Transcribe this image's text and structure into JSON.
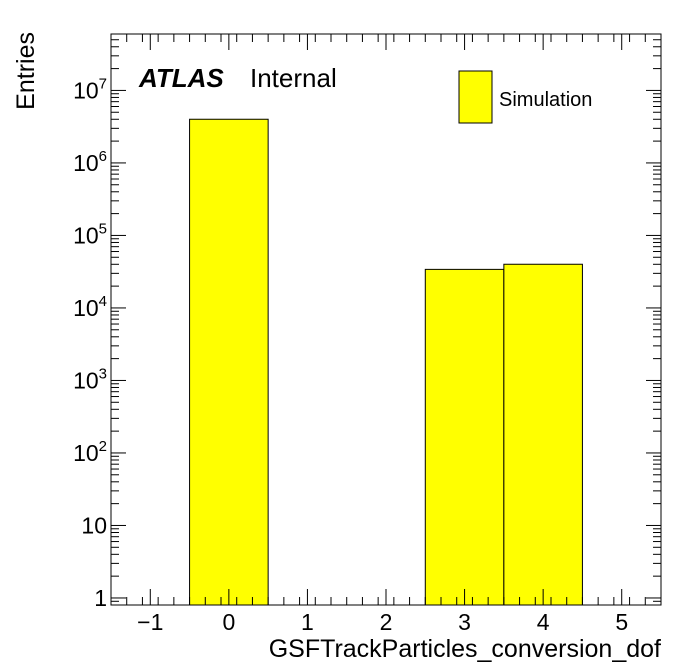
{
  "chart_data": {
    "type": "bar",
    "title": "",
    "xlabel": "GSFTrackParticles_conversion_dof",
    "ylabel": "Entries",
    "xlim": [
      -1.5,
      5.5
    ],
    "ylim": [
      0.8,
      60000000
    ],
    "yscale": "log",
    "x_ticks": [
      -1,
      0,
      1,
      2,
      3,
      4,
      5
    ],
    "x_tick_labels": [
      "−1",
      "0",
      "1",
      "2",
      "3",
      "4",
      "5"
    ],
    "y_ticks": [
      {
        "value": 1,
        "base": "1",
        "exp": ""
      },
      {
        "value": 10,
        "base": "10",
        "exp": ""
      },
      {
        "value": 100,
        "base": "10",
        "exp": "2"
      },
      {
        "value": 1000,
        "base": "10",
        "exp": "3"
      },
      {
        "value": 10000,
        "base": "10",
        "exp": "4"
      },
      {
        "value": 100000,
        "base": "10",
        "exp": "5"
      },
      {
        "value": 1000000,
        "base": "10",
        "exp": "6"
      },
      {
        "value": 10000000,
        "base": "10",
        "exp": "7"
      }
    ],
    "bins": [
      {
        "low": -0.5,
        "high": 0.5,
        "value": 4000000
      },
      {
        "low": 2.5,
        "high": 3.5,
        "value": 34000
      },
      {
        "low": 3.5,
        "high": 4.5,
        "value": 40000
      }
    ],
    "series": [
      {
        "name": "Simulation",
        "color": "#ffff00"
      }
    ],
    "legend_position": "top-right",
    "grid": false
  },
  "labels": {
    "atlas": "ATLAS",
    "internal": "Internal",
    "legend_entry": "Simulation"
  },
  "colors": {
    "fill": "#ffff00",
    "line": "#000000"
  }
}
